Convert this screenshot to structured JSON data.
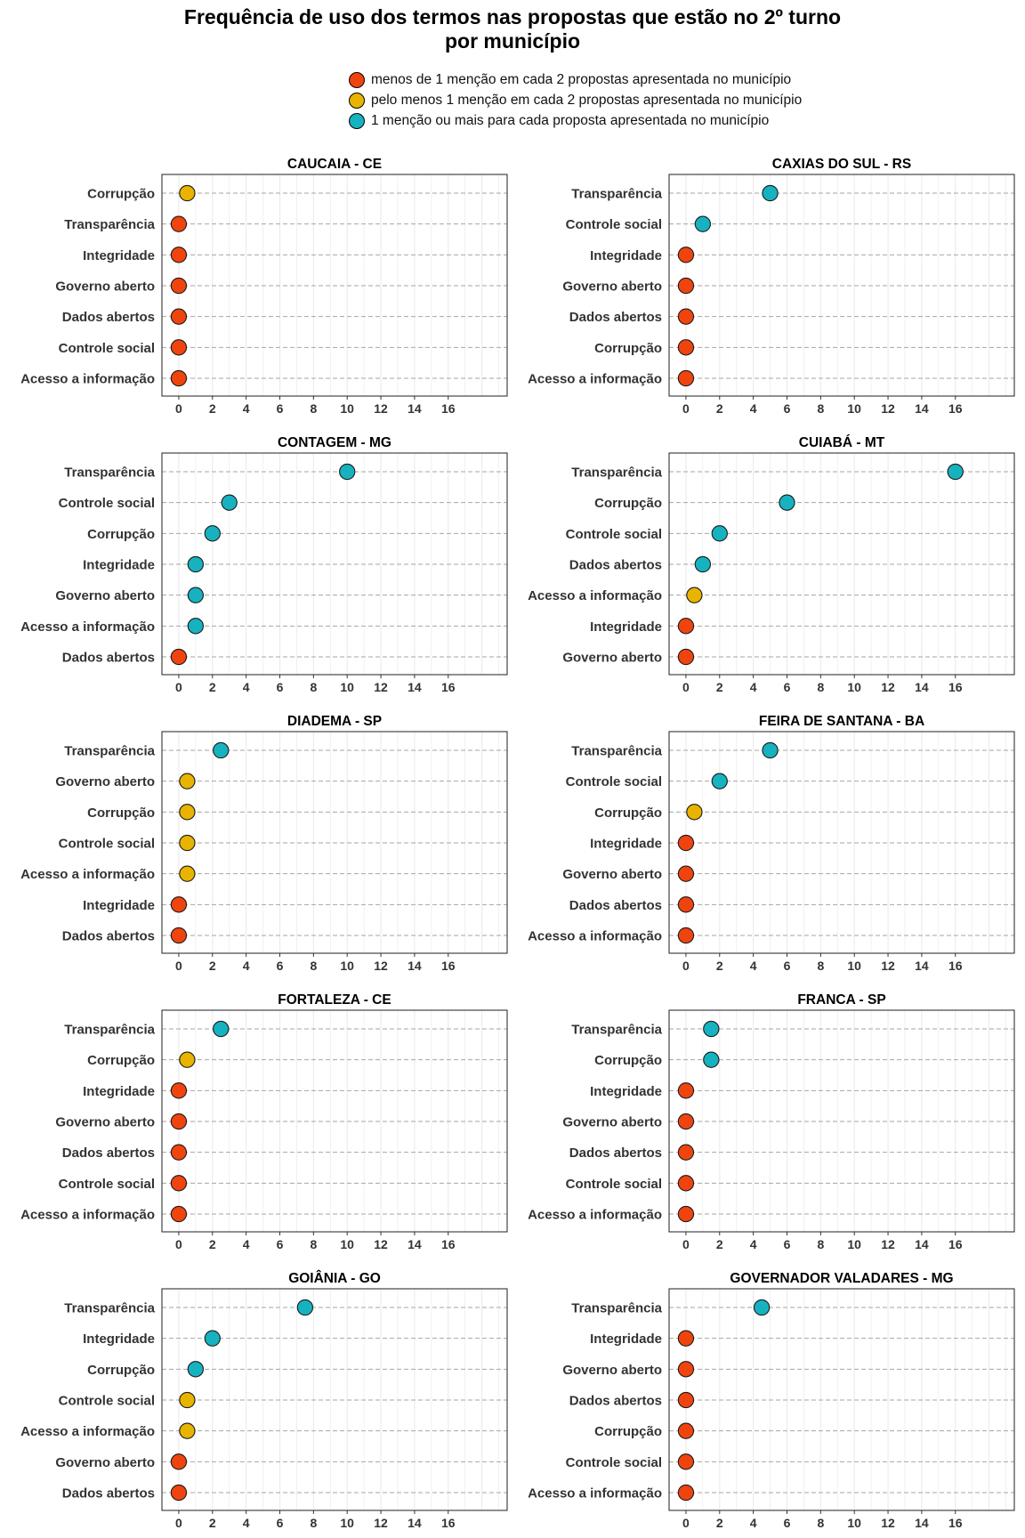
{
  "title": {
    "line1": "Frequência de uso dos termos nas propostas que estão no 2º turno",
    "line2": "por município"
  },
  "legend": [
    {
      "label": "menos de 1 menção em cada 2 propostas apresentada no município",
      "color": "#F0440F"
    },
    {
      "label": "pelo menos 1 menção em cada 2 propostas apresentada no município",
      "color": "#E8B400"
    },
    {
      "label": "1 menção ou mais para cada proposta apresentada no município",
      "color": "#17B2BF"
    }
  ],
  "categories_color": {
    "low": "#F0440F",
    "mid": "#E8B400",
    "high": "#17B2BF"
  },
  "x_ticks": [
    "0",
    "2",
    "4",
    "6",
    "8",
    "10",
    "12",
    "14",
    "16"
  ],
  "chart_data": [
    {
      "type": "scatter",
      "title": "CAUCAIA - CE",
      "xlim": [
        -1,
        19.5
      ],
      "points": [
        {
          "term": "Corrupção",
          "value": 0.5,
          "level": "mid"
        },
        {
          "term": "Transparência",
          "value": 0,
          "level": "low"
        },
        {
          "term": "Integridade",
          "value": 0,
          "level": "low"
        },
        {
          "term": "Governo aberto",
          "value": 0,
          "level": "low"
        },
        {
          "term": "Dados abertos",
          "value": 0,
          "level": "low"
        },
        {
          "term": "Controle social",
          "value": 0,
          "level": "low"
        },
        {
          "term": "Acesso a informação",
          "value": 0,
          "level": "low"
        }
      ]
    },
    {
      "type": "scatter",
      "title": "CAXIAS DO SUL - RS",
      "xlim": [
        -1,
        19.5
      ],
      "points": [
        {
          "term": "Transparência",
          "value": 5,
          "level": "high"
        },
        {
          "term": "Controle social",
          "value": 1,
          "level": "high"
        },
        {
          "term": "Integridade",
          "value": 0,
          "level": "low"
        },
        {
          "term": "Governo aberto",
          "value": 0,
          "level": "low"
        },
        {
          "term": "Dados abertos",
          "value": 0,
          "level": "low"
        },
        {
          "term": "Corrupção",
          "value": 0,
          "level": "low"
        },
        {
          "term": "Acesso a informação",
          "value": 0,
          "level": "low"
        }
      ]
    },
    {
      "type": "scatter",
      "title": "CONTAGEM - MG",
      "xlim": [
        -1,
        19.5
      ],
      "points": [
        {
          "term": "Transparência",
          "value": 10,
          "level": "high"
        },
        {
          "term": "Controle social",
          "value": 3,
          "level": "high"
        },
        {
          "term": "Corrupção",
          "value": 2,
          "level": "high"
        },
        {
          "term": "Integridade",
          "value": 1,
          "level": "high"
        },
        {
          "term": "Governo aberto",
          "value": 1,
          "level": "high"
        },
        {
          "term": "Acesso a informação",
          "value": 1,
          "level": "high"
        },
        {
          "term": "Dados abertos",
          "value": 0,
          "level": "low"
        }
      ]
    },
    {
      "type": "scatter",
      "title": "CUIABÁ - MT",
      "xlim": [
        -1,
        19.5
      ],
      "points": [
        {
          "term": "Transparência",
          "value": 16,
          "level": "high"
        },
        {
          "term": "Corrupção",
          "value": 6,
          "level": "high"
        },
        {
          "term": "Controle social",
          "value": 2,
          "level": "high"
        },
        {
          "term": "Dados abertos",
          "value": 1,
          "level": "high"
        },
        {
          "term": "Acesso a informação",
          "value": 0.5,
          "level": "mid"
        },
        {
          "term": "Integridade",
          "value": 0,
          "level": "low"
        },
        {
          "term": "Governo aberto",
          "value": 0,
          "level": "low"
        }
      ]
    },
    {
      "type": "scatter",
      "title": "DIADEMA - SP",
      "xlim": [
        -1,
        19.5
      ],
      "points": [
        {
          "term": "Transparência",
          "value": 2.5,
          "level": "high"
        },
        {
          "term": "Governo aberto",
          "value": 0.5,
          "level": "mid"
        },
        {
          "term": "Corrupção",
          "value": 0.5,
          "level": "mid"
        },
        {
          "term": "Controle social",
          "value": 0.5,
          "level": "mid"
        },
        {
          "term": "Acesso a informação",
          "value": 0.5,
          "level": "mid"
        },
        {
          "term": "Integridade",
          "value": 0,
          "level": "low"
        },
        {
          "term": "Dados abertos",
          "value": 0,
          "level": "low"
        }
      ]
    },
    {
      "type": "scatter",
      "title": "FEIRA DE SANTANA - BA",
      "xlim": [
        -1,
        19.5
      ],
      "points": [
        {
          "term": "Transparência",
          "value": 5,
          "level": "high"
        },
        {
          "term": "Controle social",
          "value": 2,
          "level": "high"
        },
        {
          "term": "Corrupção",
          "value": 0.5,
          "level": "mid"
        },
        {
          "term": "Integridade",
          "value": 0,
          "level": "low"
        },
        {
          "term": "Governo aberto",
          "value": 0,
          "level": "low"
        },
        {
          "term": "Dados abertos",
          "value": 0,
          "level": "low"
        },
        {
          "term": "Acesso a informação",
          "value": 0,
          "level": "low"
        }
      ]
    },
    {
      "type": "scatter",
      "title": "FORTALEZA - CE",
      "xlim": [
        -1,
        19.5
      ],
      "points": [
        {
          "term": "Transparência",
          "value": 2.5,
          "level": "high"
        },
        {
          "term": "Corrupção",
          "value": 0.5,
          "level": "mid"
        },
        {
          "term": "Integridade",
          "value": 0,
          "level": "low"
        },
        {
          "term": "Governo aberto",
          "value": 0,
          "level": "low"
        },
        {
          "term": "Dados abertos",
          "value": 0,
          "level": "low"
        },
        {
          "term": "Controle social",
          "value": 0,
          "level": "low"
        },
        {
          "term": "Acesso a informação",
          "value": 0,
          "level": "low"
        }
      ]
    },
    {
      "type": "scatter",
      "title": "FRANCA - SP",
      "xlim": [
        -1,
        19.5
      ],
      "points": [
        {
          "term": "Transparência",
          "value": 1.5,
          "level": "high"
        },
        {
          "term": "Corrupção",
          "value": 1.5,
          "level": "high"
        },
        {
          "term": "Integridade",
          "value": 0,
          "level": "low"
        },
        {
          "term": "Governo aberto",
          "value": 0,
          "level": "low"
        },
        {
          "term": "Dados abertos",
          "value": 0,
          "level": "low"
        },
        {
          "term": "Controle social",
          "value": 0,
          "level": "low"
        },
        {
          "term": "Acesso a informação",
          "value": 0,
          "level": "low"
        }
      ]
    },
    {
      "type": "scatter",
      "title": "GOIÂNIA - GO",
      "xlim": [
        -1,
        19.5
      ],
      "points": [
        {
          "term": "Transparência",
          "value": 7.5,
          "level": "high"
        },
        {
          "term": "Integridade",
          "value": 2,
          "level": "high"
        },
        {
          "term": "Corrupção",
          "value": 1,
          "level": "high"
        },
        {
          "term": "Controle social",
          "value": 0.5,
          "level": "mid"
        },
        {
          "term": "Acesso a informação",
          "value": 0.5,
          "level": "mid"
        },
        {
          "term": "Governo aberto",
          "value": 0,
          "level": "low"
        },
        {
          "term": "Dados abertos",
          "value": 0,
          "level": "low"
        }
      ]
    },
    {
      "type": "scatter",
      "title": "GOVERNADOR VALADARES - MG",
      "xlim": [
        -1,
        19.5
      ],
      "points": [
        {
          "term": "Transparência",
          "value": 4.5,
          "level": "high"
        },
        {
          "term": "Integridade",
          "value": 0,
          "level": "low"
        },
        {
          "term": "Governo aberto",
          "value": 0,
          "level": "low"
        },
        {
          "term": "Dados abertos",
          "value": 0,
          "level": "low"
        },
        {
          "term": "Corrupção",
          "value": 0,
          "level": "low"
        },
        {
          "term": "Controle social",
          "value": 0,
          "level": "low"
        },
        {
          "term": "Acesso a informação",
          "value": 0,
          "level": "low"
        }
      ]
    }
  ]
}
